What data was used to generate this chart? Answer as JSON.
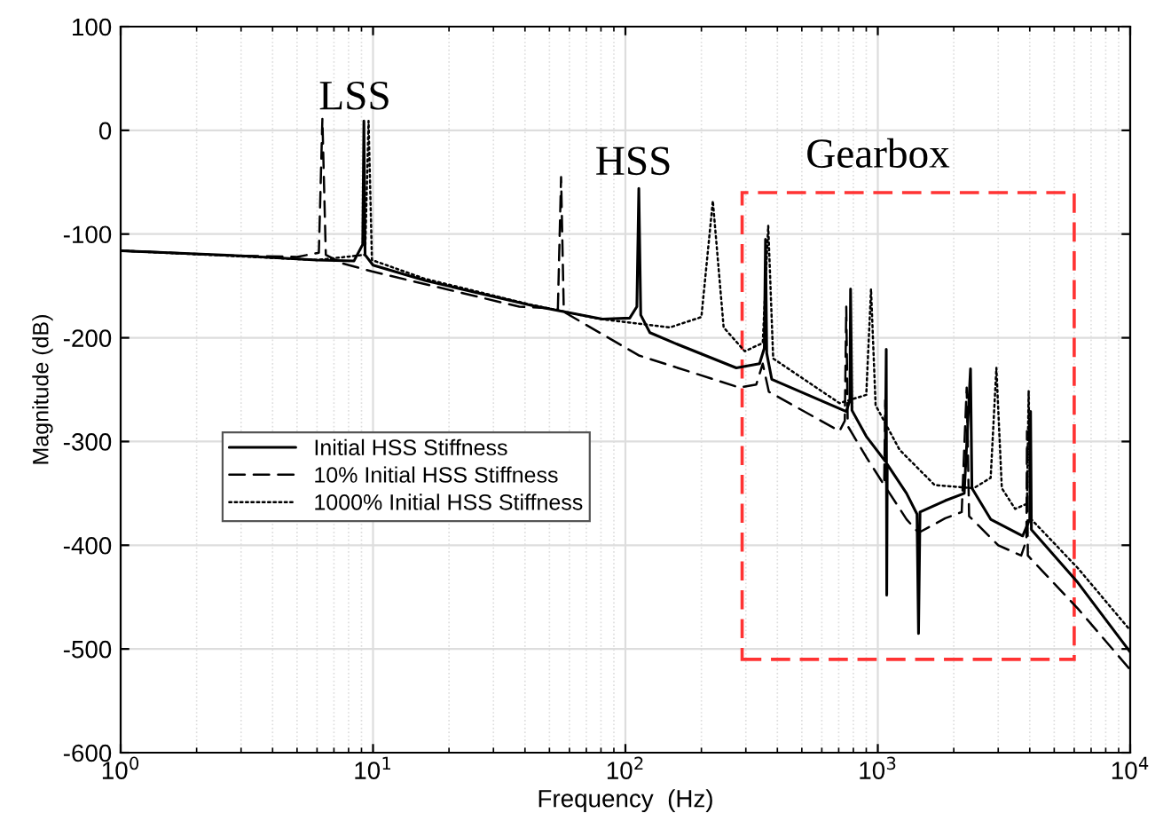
{
  "chart_data": {
    "type": "line",
    "xlabel": "Frequency  (Hz)",
    "ylabel": "Magnitude (dB)",
    "log": "x",
    "xlim": [
      1,
      10000
    ],
    "xticks": [
      {
        "value": 1,
        "label": "10$^{0}$"
      },
      {
        "value": 10,
        "label": "10$^{1}$"
      },
      {
        "value": 100,
        "label": "10$^{2}$"
      },
      {
        "value": 1000,
        "label": "10$^{3}$"
      },
      {
        "value": 10000,
        "label": "10$^{4}$"
      }
    ],
    "ylim": [
      -600,
      100
    ],
    "yticks": [
      -600,
      -500,
      -400,
      -300,
      -200,
      -100,
      0,
      100
    ],
    "grid": true,
    "legend": "center left",
    "marker": "none",
    "annotations": [
      "LSS",
      "HSS",
      "Gearbox"
    ],
    "series": [
      {
        "name": "Initial HSS Stiffness",
        "color": "#000000",
        "line_style": "solid",
        "x": [
          1,
          3,
          6,
          8.4,
          9.1,
          9.2,
          9.3,
          10,
          16.2,
          42.7,
          81,
          104,
          111,
          113,
          115,
          125,
          156,
          275,
          340,
          355,
          359,
          363,
          380,
          750,
          775,
          780,
          790,
          900,
          1070,
          1080,
          1085,
          1090,
          1300,
          1430,
          1450,
          1470,
          1850,
          2200,
          2330,
          2360,
          2800,
          3750,
          4000,
          4030,
          4060,
          6200,
          10000
        ],
        "values": [
          -116,
          -121,
          -125,
          -126,
          -110,
          9,
          -120,
          -130,
          -145,
          -169,
          -182,
          -181,
          -170,
          -56,
          -178,
          -195,
          -205,
          -229,
          -225,
          -210,
          -105,
          -215,
          -240,
          -271,
          -260,
          -153,
          -270,
          -295,
          -319,
          -211,
          -448,
          -322,
          -350,
          -370,
          -485,
          -368,
          -357,
          -350,
          -230,
          -345,
          -375,
          -391,
          -375,
          -271,
          -385,
          -436,
          -503
        ]
      },
      {
        "name": "10% Initial HSS Stiffness",
        "color": "#000000",
        "line_style": "dashed",
        "x": [
          1,
          3,
          5,
          6.1,
          6.3,
          6.5,
          7.5,
          9.9,
          38,
          54,
          55.6,
          57,
          113,
          283,
          330,
          350,
          370,
          705,
          740,
          750,
          760,
          900,
          1060,
          1070,
          1080,
          1300,
          1450,
          1850,
          2150,
          2250,
          2300,
          3000,
          3700,
          3880,
          3900,
          3930,
          6200,
          10000
        ],
        "values": [
          -116,
          -121,
          -122,
          -118,
          11,
          -120,
          -128,
          -136,
          -170,
          -172,
          -45,
          -175,
          -217,
          -248,
          -245,
          -225,
          -252,
          -290,
          -280,
          -170,
          -285,
          -315,
          -342,
          -260,
          -345,
          -375,
          -388,
          -374,
          -368,
          -248,
          -372,
          -400,
          -410,
          -395,
          -290,
          -410,
          -461,
          -520
        ]
      },
      {
        "name": "1000% Initial HSS Stiffness",
        "color": "#000000",
        "line_style": "dotted",
        "x": [
          1,
          6,
          9.3,
          9.6,
          9.9,
          16,
          42,
          80,
          150,
          200,
          222,
          245,
          297,
          350,
          368,
          385,
          705,
          900,
          940,
          980,
          1220,
          1680,
          2400,
          2800,
          2950,
          3100,
          3500,
          3900,
          3960,
          4020,
          6200,
          10000
        ],
        "values": [
          -116,
          -125,
          -120,
          9,
          -125,
          -143,
          -168,
          -182,
          -190,
          -180,
          -68,
          -190,
          -213,
          -205,
          -92,
          -220,
          -263,
          -255,
          -153,
          -265,
          -308,
          -342,
          -345,
          -335,
          -229,
          -345,
          -365,
          -360,
          -251,
          -374,
          -422,
          -482
        ]
      }
    ]
  }
}
